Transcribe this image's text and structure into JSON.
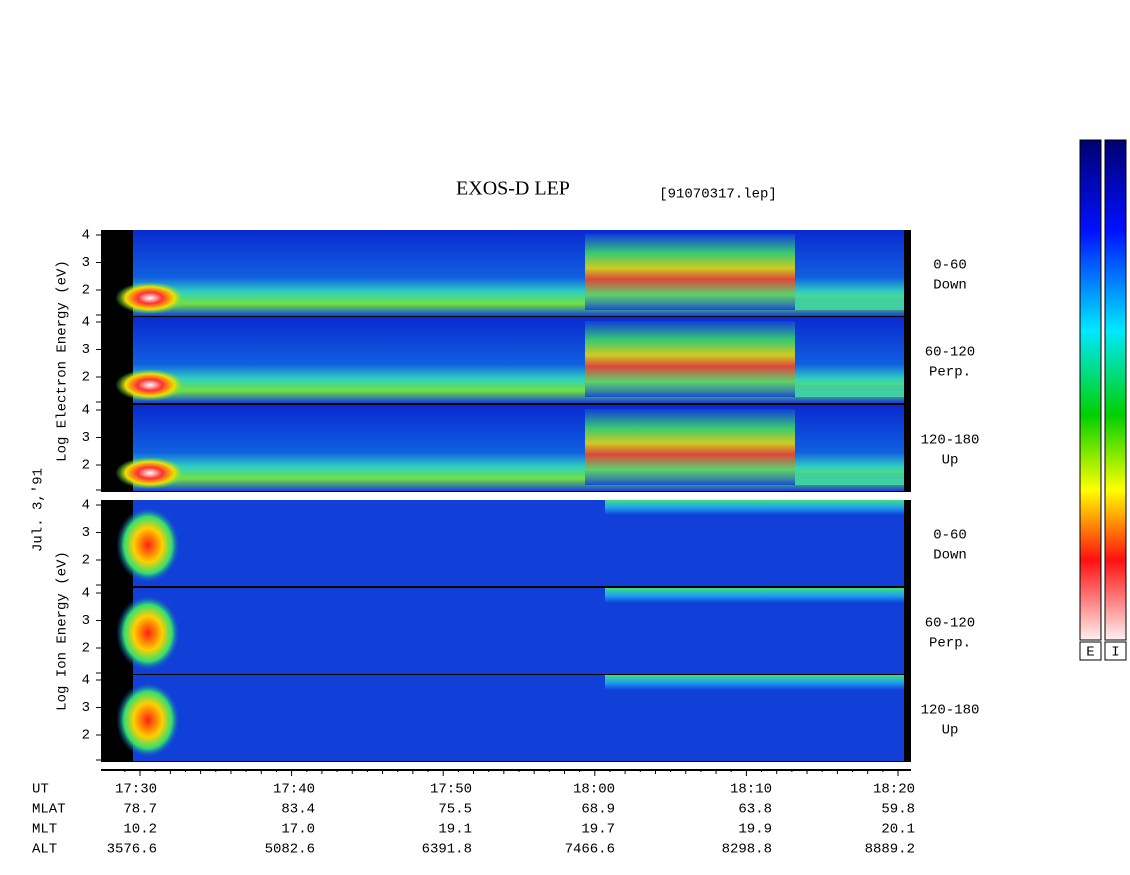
{
  "title": "EXOS-D LEP",
  "file": "[91070317.lep]",
  "electron_axis_label": "Log Electron Energy (eV)",
  "ion_axis_label": "Log Ion Energy (eV)",
  "date": "Jul. 3,'91",
  "panels": [
    {
      "pitch": "0-60",
      "direction": "Down",
      "yticks": [
        "4",
        "3",
        "2"
      ]
    },
    {
      "pitch": "60-120",
      "direction": "Perp.",
      "yticks": [
        "4",
        "3",
        "2"
      ]
    },
    {
      "pitch": "120-180",
      "direction": "Up",
      "yticks": [
        "4",
        "3",
        "2"
      ]
    },
    {
      "pitch": "0-60",
      "direction": "Down",
      "yticks": [
        "4",
        "3",
        "2"
      ]
    },
    {
      "pitch": "60-120",
      "direction": "Perp.",
      "yticks": [
        "4",
        "3",
        "2"
      ]
    },
    {
      "pitch": "120-180",
      "direction": "Up",
      "yticks": [
        "4",
        "3",
        "2"
      ]
    }
  ],
  "rows": [
    {
      "label": "UT",
      "values": [
        "17:30",
        "17:40",
        "17:50",
        "18:00",
        "18:10",
        "18:20"
      ]
    },
    {
      "label": "MLAT",
      "values": [
        "78.7",
        "83.4",
        "75.5",
        "68.9",
        "63.8",
        "59.8"
      ]
    },
    {
      "label": "MLT",
      "values": [
        "10.2",
        "17.0",
        "19.1",
        "19.7",
        "19.9",
        "20.1"
      ]
    },
    {
      "label": "ALT",
      "values": [
        "3576.6",
        "5082.6",
        "6391.8",
        "7466.6",
        "8298.8",
        "8889.2"
      ]
    }
  ],
  "colorbar": [
    "E",
    "I"
  ]
}
